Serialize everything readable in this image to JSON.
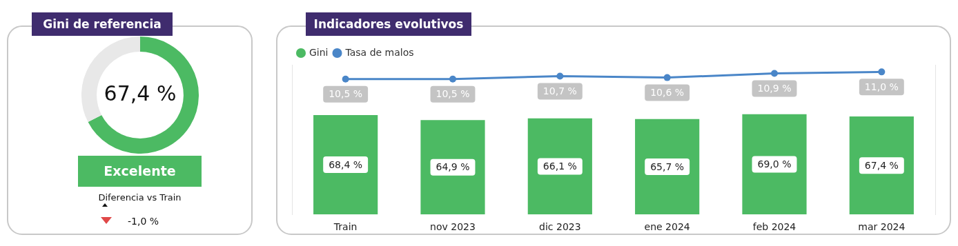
{
  "chart_data": [
    {
      "type": "donut",
      "title": "Gini de referencia",
      "categories": [
        null,
        null
      ],
      "values": [
        67.4,
        32.6
      ],
      "colors": [
        "#4cba63",
        "#e8e8e8"
      ],
      "annotations": [
        "67,4 %",
        "Excelente",
        "Diferencia vs Train",
        "-1,0 %"
      ]
    },
    {
      "type": "bar",
      "title": "Indicadores evolutivos",
      "categories": [
        "Train",
        "nov 2023",
        "dic 2023",
        "ene 2024",
        "feb 2024",
        "mar 2024"
      ],
      "series": [
        {
          "name": "Gini",
          "type": "bar",
          "color": "#4cba63",
          "values": [
            68.4,
            64.9,
            66.1,
            65.7,
            69.0,
            67.4
          ],
          "value_labels": [
            "68,4 %",
            "64,9 %",
            "66,1 %",
            "65,7 %",
            "69,0 %",
            "67,4 %"
          ]
        },
        {
          "name": "Tasa de malos",
          "type": "line",
          "axis": "y2",
          "color": "#4a86c8",
          "values": [
            10.5,
            10.5,
            10.7,
            10.6,
            10.9,
            11.0
          ],
          "value_labels": [
            "10,5 %",
            "10,5 %",
            "10,7 %",
            "10,6 %",
            "10,9 %",
            "11,0 %"
          ]
        }
      ],
      "ylim": [
        0,
        103
      ],
      "y2lim": [
        1,
        11.5
      ],
      "legend": "top left",
      "marker": "circle",
      "tick_labels": "x"
    }
  ]
}
